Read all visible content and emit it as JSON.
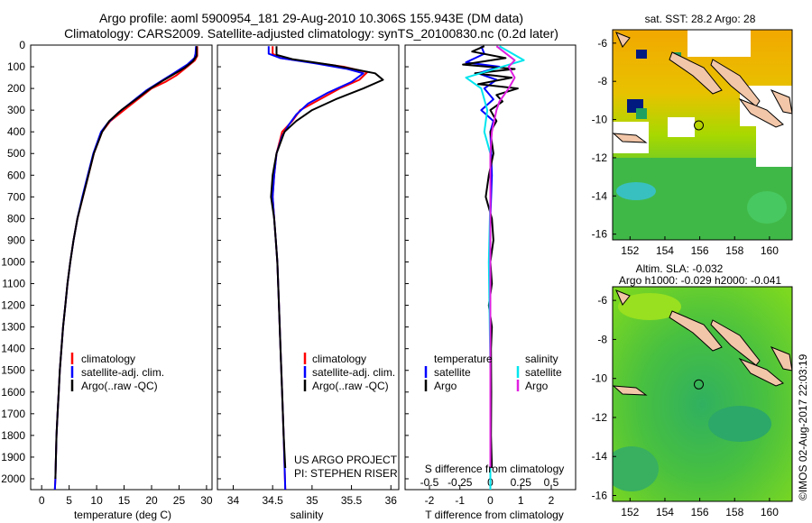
{
  "title_line1": "Argo profile: aoml 5900954_181 29-Aug-2010 10.306S 155.943E (DM data)",
  "title_line2": "Climatology: CARS2009. Satellite-adjusted climatology: synTS_20100830.nc (0.2d later)",
  "watermark": "©IMOS 02-Aug-2017 22:03:19",
  "colors": {
    "climatology": "#ff0000",
    "satellite": "#0000ff",
    "argo": "#000000",
    "sal_satellite": "#00e5ee",
    "sal_argo": "#e020e0",
    "land": "#f2c6a8"
  },
  "chart_data": [
    {
      "type": "line",
      "id": "temperature",
      "xlabel": "temperature (deg C)",
      "ylabel": "",
      "xlim": [
        -2,
        31
      ],
      "ylim": [
        2050,
        0
      ],
      "xticks": [
        0,
        5,
        10,
        15,
        20,
        25,
        30
      ],
      "yticks": [
        0,
        100,
        200,
        300,
        400,
        500,
        600,
        700,
        800,
        900,
        1000,
        1100,
        1200,
        1300,
        1400,
        1500,
        1600,
        1700,
        1800,
        1900,
        2000
      ],
      "legend": [
        "climatology",
        "satellite-adj. clim.",
        "Argo(..raw -QC)"
      ],
      "series": [
        {
          "name": "climatology",
          "color": "#ff0000",
          "points": [
            [
              28.3,
              5
            ],
            [
              28.3,
              50
            ],
            [
              27.9,
              70
            ],
            [
              26.5,
              100
            ],
            [
              24.5,
              140
            ],
            [
              22.5,
              170
            ],
            [
              20,
              200
            ],
            [
              17.5,
              250
            ],
            [
              15,
              300
            ],
            [
              12.5,
              350
            ],
            [
              11,
              400
            ],
            [
              9.5,
              500
            ],
            [
              8.5,
              600
            ],
            [
              7.5,
              700
            ],
            [
              6.5,
              800
            ],
            [
              5.8,
              900
            ],
            [
              5.2,
              1000
            ],
            [
              4.7,
              1100
            ],
            [
              4.3,
              1200
            ],
            [
              3.9,
              1300
            ],
            [
              3.6,
              1400
            ],
            [
              3.3,
              1500
            ],
            [
              3.1,
              1600
            ],
            [
              2.9,
              1700
            ],
            [
              2.7,
              1800
            ],
            [
              2.6,
              1900
            ],
            [
              2.5,
              2000
            ],
            [
              2.4,
              2050
            ]
          ]
        },
        {
          "name": "satellite-adj. clim.",
          "color": "#0000ff",
          "points": [
            [
              28.1,
              5
            ],
            [
              28,
              40
            ],
            [
              27.8,
              60
            ],
            [
              26.5,
              90
            ],
            [
              24,
              130
            ],
            [
              21.5,
              170
            ],
            [
              19,
              210
            ],
            [
              16.5,
              260
            ],
            [
              14,
              310
            ],
            [
              12,
              360
            ],
            [
              10.8,
              400
            ],
            [
              9.4,
              500
            ],
            [
              8.4,
              600
            ],
            [
              7.4,
              700
            ],
            [
              6.5,
              800
            ],
            [
              5.8,
              900
            ],
            [
              5.2,
              1000
            ],
            [
              4.7,
              1100
            ],
            [
              4.3,
              1200
            ],
            [
              3.9,
              1300
            ],
            [
              3.6,
              1400
            ],
            [
              3.3,
              1500
            ],
            [
              3.1,
              1600
            ],
            [
              2.9,
              1700
            ],
            [
              2.7,
              1800
            ],
            [
              2.6,
              1900
            ],
            [
              2.5,
              2000
            ],
            [
              2.4,
              2050
            ]
          ]
        },
        {
          "name": "Argo(..raw -QC)",
          "color": "#000000",
          "points": [
            [
              28.2,
              5
            ],
            [
              28.2,
              50
            ],
            [
              27.5,
              75
            ],
            [
              26,
              105
            ],
            [
              24,
              135
            ],
            [
              22,
              165
            ],
            [
              19.8,
              200
            ],
            [
              17.2,
              250
            ],
            [
              14.5,
              300
            ],
            [
              12.3,
              350
            ],
            [
              11,
              400
            ],
            [
              9.5,
              500
            ],
            [
              8.5,
              600
            ],
            [
              7.5,
              700
            ],
            [
              6.5,
              800
            ],
            [
              5.8,
              900
            ],
            [
              5.2,
              1000
            ],
            [
              4.7,
              1100
            ],
            [
              4.3,
              1200
            ],
            [
              3.9,
              1300
            ],
            [
              3.6,
              1400
            ],
            [
              3.3,
              1500
            ],
            [
              3.1,
              1600
            ],
            [
              2.9,
              1700
            ],
            [
              2.7,
              1800
            ],
            [
              2.6,
              1900
            ],
            [
              2.5,
              2000
            ]
          ]
        }
      ]
    },
    {
      "type": "line",
      "id": "salinity",
      "xlabel": "salinity",
      "ylabel": "",
      "xlim": [
        33.8,
        36.1
      ],
      "ylim": [
        2050,
        0
      ],
      "xticks": [
        34,
        34.5,
        35,
        35.5,
        36
      ],
      "legend": [
        "climatology",
        "satellite-adj. clim.",
        "Argo(..raw -QC)"
      ],
      "annotation": [
        "US ARGO PROJECT",
        "PI: STEPHEN RISER"
      ],
      "series": [
        {
          "name": "climatology",
          "color": "#ff0000",
          "points": [
            [
              34.5,
              5
            ],
            [
              34.5,
              40
            ],
            [
              34.6,
              60
            ],
            [
              35,
              80
            ],
            [
              35.4,
              100
            ],
            [
              35.7,
              125
            ],
            [
              35.6,
              160
            ],
            [
              35.35,
              200
            ],
            [
              35.1,
              250
            ],
            [
              34.85,
              300
            ],
            [
              34.75,
              350
            ],
            [
              34.62,
              400
            ],
            [
              34.55,
              500
            ],
            [
              34.52,
              600
            ],
            [
              34.5,
              700
            ],
            [
              34.52,
              800
            ],
            [
              34.54,
              900
            ],
            [
              34.56,
              1000
            ],
            [
              34.58,
              1200
            ],
            [
              34.6,
              1400
            ],
            [
              34.62,
              1600
            ],
            [
              34.64,
              1800
            ],
            [
              34.66,
              2050
            ]
          ]
        },
        {
          "name": "satellite-adj. clim.",
          "color": "#0000ff",
          "points": [
            [
              34.45,
              5
            ],
            [
              34.45,
              40
            ],
            [
              34.6,
              60
            ],
            [
              35.05,
              85
            ],
            [
              35.45,
              110
            ],
            [
              35.65,
              130
            ],
            [
              35.5,
              170
            ],
            [
              35.2,
              220
            ],
            [
              34.95,
              270
            ],
            [
              34.8,
              320
            ],
            [
              34.7,
              370
            ],
            [
              34.62,
              420
            ],
            [
              34.55,
              500
            ],
            [
              34.52,
              600
            ],
            [
              34.5,
              700
            ],
            [
              34.52,
              800
            ],
            [
              34.54,
              900
            ],
            [
              34.56,
              1000
            ],
            [
              34.58,
              1200
            ],
            [
              34.6,
              1400
            ],
            [
              34.62,
              1600
            ],
            [
              34.64,
              1800
            ],
            [
              34.66,
              2050
            ]
          ]
        },
        {
          "name": "Argo(..raw -QC)",
          "color": "#000000",
          "points": [
            [
              34.55,
              5
            ],
            [
              34.55,
              45
            ],
            [
              34.75,
              65
            ],
            [
              35.3,
              95
            ],
            [
              35.8,
              130
            ],
            [
              35.9,
              160
            ],
            [
              35.65,
              200
            ],
            [
              35.3,
              250
            ],
            [
              35,
              300
            ],
            [
              34.8,
              350
            ],
            [
              34.65,
              400
            ],
            [
              34.55,
              500
            ],
            [
              34.5,
              600
            ],
            [
              34.48,
              700
            ],
            [
              34.52,
              800
            ],
            [
              34.54,
              900
            ],
            [
              34.56,
              1000
            ],
            [
              34.58,
              1200
            ],
            [
              34.6,
              1400
            ],
            [
              34.62,
              1600
            ],
            [
              34.64,
              1800
            ],
            [
              34.66,
              1950
            ]
          ]
        }
      ]
    },
    {
      "type": "line",
      "id": "difference",
      "xlabel": "T difference from climatology",
      "xlabel2": "S difference from climatology",
      "ylabel": "",
      "xlim": [
        -2.8,
        2.8
      ],
      "ylim": [
        2050,
        0
      ],
      "xticks": [
        -2,
        -1,
        0,
        1,
        2
      ],
      "xticklabels_top": [
        "-0.5",
        "-0.25",
        "0",
        "0.25",
        "0.5"
      ],
      "xticks_top_values": [
        -2,
        -1,
        0,
        1,
        2
      ],
      "legend_headers": [
        "temperature",
        "salinity"
      ],
      "legend": [
        "satellite",
        "Argo",
        "satellite",
        "Argo"
      ],
      "series": [
        {
          "name": "T satellite",
          "color": "#0000ff",
          "points": [
            [
              -0.3,
              5
            ],
            [
              -0.2,
              40
            ],
            [
              -0.8,
              80
            ],
            [
              0.3,
              100
            ],
            [
              -0.4,
              130
            ],
            [
              0.2,
              160
            ],
            [
              -0.2,
              200
            ],
            [
              0.1,
              250
            ],
            [
              -0.3,
              300
            ],
            [
              0.1,
              350
            ],
            [
              0,
              400
            ],
            [
              0.05,
              600
            ],
            [
              0,
              800
            ],
            [
              0,
              1000
            ],
            [
              0,
              1500
            ],
            [
              0,
              2050
            ]
          ]
        },
        {
          "name": "T Argo",
          "color": "#000000",
          "points": [
            [
              -0.2,
              5
            ],
            [
              -0.6,
              30
            ],
            [
              0.5,
              60
            ],
            [
              -0.9,
              90
            ],
            [
              0.8,
              110
            ],
            [
              -0.5,
              130
            ],
            [
              0.7,
              150
            ],
            [
              -0.4,
              180
            ],
            [
              0.9,
              200
            ],
            [
              0.2,
              230
            ],
            [
              0.4,
              260
            ],
            [
              0,
              300
            ],
            [
              0.2,
              350
            ],
            [
              0,
              400
            ],
            [
              0.1,
              500
            ],
            [
              -0.05,
              600
            ],
            [
              -0.15,
              700
            ],
            [
              0.05,
              800
            ],
            [
              0.1,
              900
            ],
            [
              0,
              1000
            ],
            [
              0.05,
              1100
            ],
            [
              -0.05,
              1200
            ],
            [
              0.05,
              1300
            ],
            [
              0.02,
              1400
            ],
            [
              0.03,
              1600
            ],
            [
              0.02,
              1800
            ],
            [
              0.05,
              1950
            ]
          ]
        },
        {
          "name": "S satellite",
          "color": "#00e5ee",
          "points": [
            [
              0.3,
              5
            ],
            [
              1.1,
              70
            ],
            [
              -0.1,
              120
            ],
            [
              -0.8,
              150
            ],
            [
              -0.3,
              200
            ],
            [
              -0.1,
              300
            ],
            [
              -0.2,
              400
            ],
            [
              0,
              500
            ],
            [
              0,
              700
            ],
            [
              -0.05,
              1000
            ],
            [
              0,
              1500
            ],
            [
              0,
              2050
            ]
          ]
        },
        {
          "name": "S Argo",
          "color": "#e020e0",
          "points": [
            [
              0.2,
              5
            ],
            [
              0.8,
              70
            ],
            [
              0.6,
              100
            ],
            [
              0.8,
              150
            ],
            [
              0.6,
              200
            ],
            [
              0.3,
              260
            ],
            [
              0.2,
              300
            ],
            [
              0.05,
              400
            ],
            [
              0,
              500
            ],
            [
              0,
              700
            ],
            [
              0,
              1000
            ],
            [
              0,
              1500
            ],
            [
              0,
              1950
            ]
          ]
        }
      ]
    },
    {
      "type": "heatmap",
      "id": "sst_map",
      "title": "sat. SST: 28.2 Argo: 28",
      "xlim": [
        151,
        161.3
      ],
      "ylim": [
        -16.3,
        -5.3
      ],
      "xticks": [
        152,
        154,
        156,
        158,
        160
      ],
      "yticks": [
        -6,
        -8,
        -10,
        -12,
        -14,
        -16
      ],
      "marker": [
        155.943,
        -10.306
      ],
      "legend_position": "none"
    },
    {
      "type": "heatmap",
      "id": "sla_map",
      "title_line1": "Altim. SLA: -0.032",
      "title_line2": "Argo h1000: -0.029 h2000: -0.041",
      "xlim": [
        151,
        161.3
      ],
      "ylim": [
        -16.3,
        -5.3
      ],
      "xticks": [
        152,
        154,
        156,
        158,
        160
      ],
      "yticks": [
        -6,
        -8,
        -10,
        -12,
        -14,
        -16
      ],
      "marker": [
        155.943,
        -10.306
      ],
      "legend_position": "none"
    }
  ]
}
